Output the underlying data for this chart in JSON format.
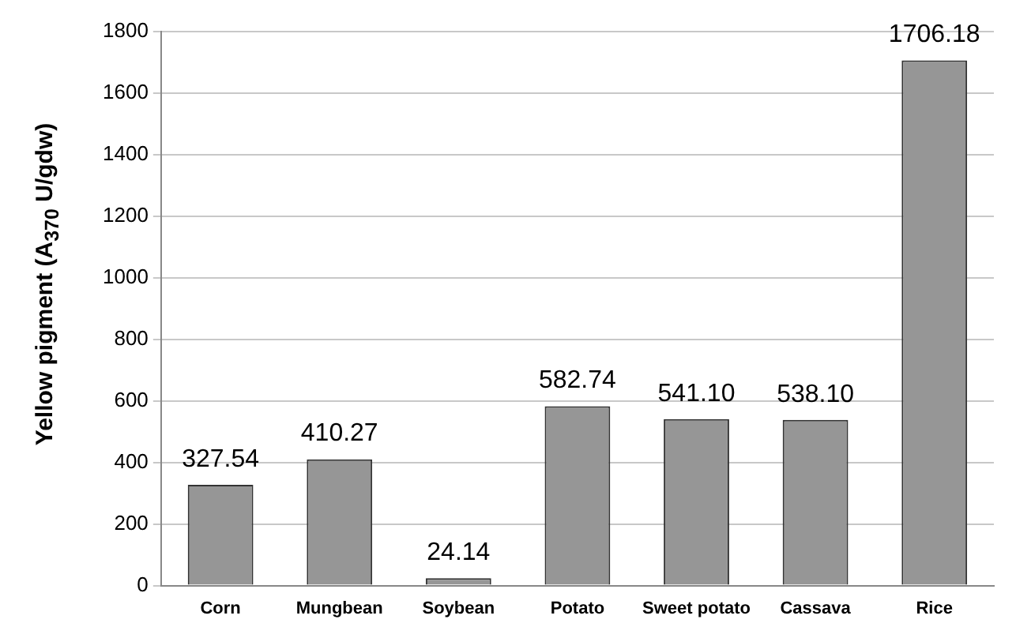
{
  "chart_data": {
    "type": "bar",
    "ylabel": "Yellow pigment (A$_{370}$ U/gdw)",
    "categories": [
      "Corn",
      "Mungbean",
      "Soybean",
      "Potato",
      "Sweet potato",
      "Cassava",
      "Rice"
    ],
    "values": [
      327.54,
      410.27,
      24.14,
      582.74,
      541.1,
      538.1,
      1706.18
    ],
    "value_labels": [
      "327.54",
      "410.27",
      "24.14",
      "582.74",
      "541.10",
      "538.10",
      "1706.18"
    ],
    "color": "#969696",
    "ylim": [
      0,
      1800
    ],
    "yticks": [
      0,
      200,
      400,
      600,
      800,
      1000,
      1200,
      1400,
      1600,
      1800
    ],
    "grid": "y",
    "legend": false
  }
}
